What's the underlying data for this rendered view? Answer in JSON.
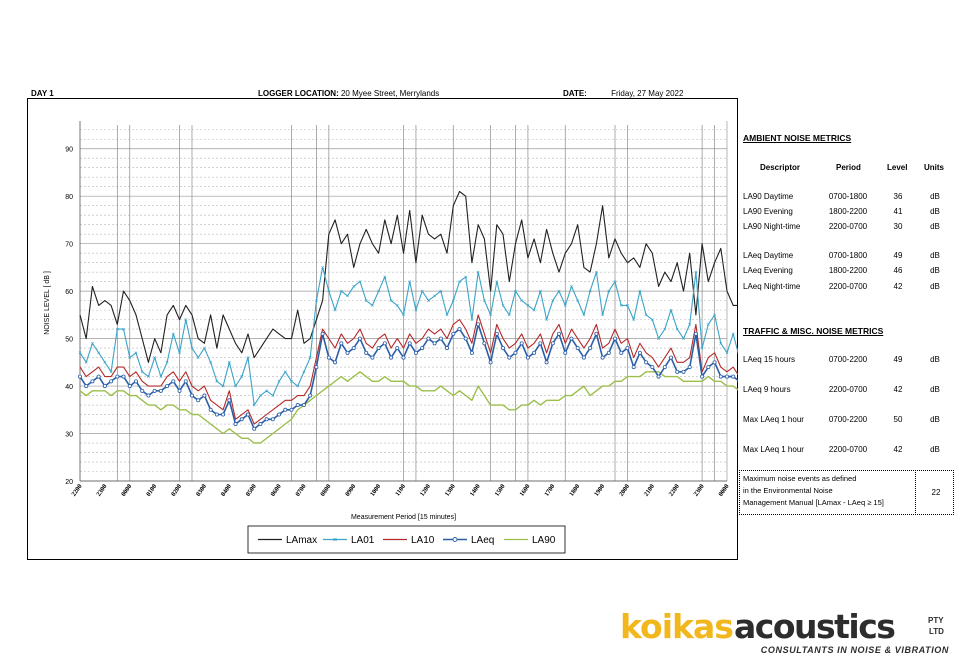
{
  "header": {
    "day": "DAY 1",
    "logger_label": "LOGGER LOCATION:",
    "logger_value": "20 Myee Street, Merrylands",
    "date_label": "DATE:",
    "date_value": "Friday, 27 May 2022"
  },
  "chart_data": {
    "type": "line",
    "ylabel": "NOISE LEVEL [ dB ]",
    "xlabel": "Measurement Period  [15 minutes]",
    "ylim": [
      20,
      95
    ],
    "yticks": [
      20,
      30,
      40,
      50,
      60,
      70,
      80,
      90
    ],
    "grid": true,
    "legend_position": "bottom",
    "x_tick_labels": [
      "2200",
      "2300",
      "0000",
      "0100",
      "0200",
      "0300",
      "0400",
      "0500",
      "0600",
      "0700",
      "0800",
      "0900",
      "1000",
      "1100",
      "1200",
      "1300",
      "1400",
      "1500",
      "1600",
      "1700",
      "1800",
      "1900",
      "2000",
      "2100",
      "2200",
      "2300",
      "0000"
    ],
    "points_per_hour": 4,
    "series": [
      {
        "name": "LAmax",
        "color": "#222222",
        "marker": "none",
        "values": [
          55,
          50,
          61,
          57,
          58,
          57,
          53,
          60,
          58,
          55,
          50,
          45,
          50,
          47,
          55,
          57,
          54,
          57,
          55,
          50,
          49,
          55,
          48,
          55,
          52,
          49,
          47,
          51,
          46,
          48,
          50,
          52,
          51,
          50,
          50,
          56,
          49,
          50,
          54,
          58,
          72,
          75,
          70,
          72,
          65,
          70,
          73,
          70,
          68,
          75,
          70,
          76,
          68,
          77,
          66,
          76,
          72,
          71,
          72,
          68,
          78,
          81,
          80,
          66,
          74,
          71,
          60,
          74,
          72,
          62,
          70,
          75,
          67,
          71,
          66,
          73,
          68,
          64,
          68,
          70,
          74,
          65,
          64,
          70,
          78,
          67,
          71,
          68,
          66,
          67,
          65,
          70,
          68,
          61,
          64,
          62,
          66,
          60,
          68,
          55,
          70,
          62,
          66,
          69,
          60,
          57,
          57
        ]
      },
      {
        "name": "LA01",
        "color": "#3ba4c8",
        "marker": "x",
        "values": [
          47,
          45,
          49,
          47,
          45,
          43,
          52,
          52,
          46,
          47,
          43,
          42,
          46,
          42,
          45,
          51,
          47,
          54,
          48,
          46,
          48,
          45,
          41,
          40,
          45,
          40,
          42,
          46,
          36,
          38,
          39,
          38,
          41,
          43,
          41,
          40,
          43,
          46,
          58,
          65,
          60,
          56,
          60,
          59,
          61,
          62,
          58,
          57,
          60,
          63,
          58,
          57,
          55,
          62,
          56,
          60,
          58,
          59,
          60,
          55,
          58,
          62,
          63,
          54,
          64,
          58,
          55,
          62,
          57,
          55,
          60,
          58,
          57,
          56,
          60,
          54,
          58,
          60,
          57,
          61,
          58,
          55,
          60,
          64,
          55,
          60,
          62,
          57,
          57,
          54,
          60,
          55,
          54,
          50,
          52,
          56,
          52,
          50,
          53,
          64,
          48,
          53,
          55,
          49,
          47,
          51,
          46
        ]
      },
      {
        "name": "LA10",
        "color": "#b52a2a",
        "marker": "none",
        "values": [
          44,
          42,
          43,
          44,
          42,
          42,
          44,
          44,
          42,
          43,
          41,
          40,
          40,
          40,
          42,
          43,
          41,
          43,
          40,
          39,
          40,
          37,
          36,
          35,
          39,
          33,
          34,
          35,
          32,
          33,
          34,
          35,
          36,
          37,
          37,
          38,
          38,
          40,
          46,
          52,
          50,
          48,
          51,
          49,
          50,
          52,
          49,
          48,
          50,
          51,
          48,
          50,
          48,
          51,
          49,
          50,
          52,
          51,
          52,
          50,
          53,
          54,
          52,
          49,
          55,
          51,
          47,
          53,
          50,
          48,
          49,
          51,
          48,
          49,
          51,
          47,
          51,
          53,
          49,
          52,
          50,
          48,
          50,
          53,
          48,
          49,
          52,
          49,
          50,
          46,
          49,
          47,
          46,
          44,
          46,
          48,
          45,
          45,
          46,
          53,
          43,
          46,
          47,
          44,
          43,
          44,
          42
        ]
      },
      {
        "name": "LAeq",
        "color": "#2a5fa8",
        "marker": "circle",
        "values": [
          42,
          40,
          41,
          42,
          40,
          41,
          42,
          42,
          40,
          41,
          39,
          38,
          39,
          39,
          40,
          41,
          39,
          41,
          38,
          37,
          38,
          35,
          34,
          34,
          37,
          32,
          33,
          34,
          31,
          32,
          33,
          33,
          34,
          35,
          35,
          36,
          36,
          38,
          44,
          51,
          46,
          45,
          49,
          47,
          48,
          50,
          47,
          46,
          48,
          49,
          46,
          48,
          46,
          49,
          47,
          48,
          50,
          49,
          50,
          48,
          51,
          52,
          50,
          47,
          53,
          49,
          45,
          51,
          48,
          46,
          47,
          49,
          46,
          47,
          49,
          45,
          49,
          51,
          47,
          50,
          48,
          46,
          48,
          51,
          46,
          47,
          50,
          47,
          48,
          44,
          47,
          45,
          44,
          42,
          44,
          46,
          43,
          43,
          44,
          51,
          42,
          44,
          45,
          42,
          42,
          42,
          41
        ]
      },
      {
        "name": "LA90",
        "color": "#9bbf4a",
        "marker": "none",
        "values": [
          39,
          38,
          39,
          39,
          39,
          38,
          39,
          39,
          38,
          38,
          37,
          36,
          36,
          35,
          36,
          36,
          35,
          35,
          34,
          34,
          33,
          32,
          31,
          30,
          31,
          30,
          29,
          29,
          28,
          28,
          29,
          30,
          31,
          32,
          33,
          35,
          36,
          37,
          38,
          39,
          40,
          41,
          42,
          41,
          42,
          43,
          42,
          41,
          41,
          42,
          41,
          41,
          41,
          40,
          40,
          39,
          39,
          39,
          40,
          39,
          38,
          39,
          38,
          37,
          40,
          38,
          36,
          36,
          36,
          35,
          35,
          36,
          36,
          37,
          36,
          37,
          37,
          37,
          38,
          38,
          39,
          40,
          38,
          39,
          40,
          40,
          41,
          41,
          42,
          42,
          42,
          43,
          43,
          43,
          42,
          42,
          42,
          41,
          41,
          41,
          41,
          42,
          41,
          41,
          40,
          40,
          39
        ]
      }
    ]
  },
  "ambient": {
    "title": "AMBIENT NOISE METRICS",
    "headers": {
      "descriptor": "Descriptor",
      "period": "Period",
      "level": "Level",
      "units": "Units"
    },
    "rows": [
      {
        "descriptor": "LA90 Daytime",
        "period": "0700-1800",
        "level": "36",
        "units": "dB"
      },
      {
        "descriptor": "LA90 Evening",
        "period": "1800-2200",
        "level": "41",
        "units": "dB"
      },
      {
        "descriptor": "LA90 Night-time",
        "period": "2200-0700",
        "level": "30",
        "units": "dB"
      },
      {
        "descriptor": "LAeq Daytime",
        "period": "0700-1800",
        "level": "49",
        "units": "dB"
      },
      {
        "descriptor": "LAeq Evening",
        "period": "1800-2200",
        "level": "46",
        "units": "dB"
      },
      {
        "descriptor": "LAeq Night-time",
        "period": "2200-0700",
        "level": "42",
        "units": "dB"
      }
    ]
  },
  "traffic": {
    "title": "TRAFFIC & MISC. NOISE METRICS",
    "rows": [
      {
        "descriptor": "LAeq 15 hours",
        "period": "0700-2200",
        "level": "49",
        "units": "dB"
      },
      {
        "descriptor": "LAeq 9 hours",
        "period": "2200-0700",
        "level": "42",
        "units": "dB"
      },
      {
        "descriptor": "Max LAeq 1 hour",
        "period": "0700-2200",
        "level": "50",
        "units": "dB"
      },
      {
        "descriptor": "Max LAeq 1 hour",
        "period": "2200-0700",
        "level": "42",
        "units": "dB"
      }
    ]
  },
  "events": {
    "line1": "Maximum noise events as defined",
    "line2": "in the Environmental Noise",
    "line3": "Management Manual [LAmax - LAeq ≥ 15]",
    "value": "22"
  },
  "logo": {
    "word1": "koikas",
    "word2": "acoustics",
    "pty": "PTY",
    "ltd": "LTD",
    "tagline": "CONSULTANTS IN NOISE & VIBRATION",
    "color1": "#f2b71c",
    "color2": "#2d2d2d"
  }
}
